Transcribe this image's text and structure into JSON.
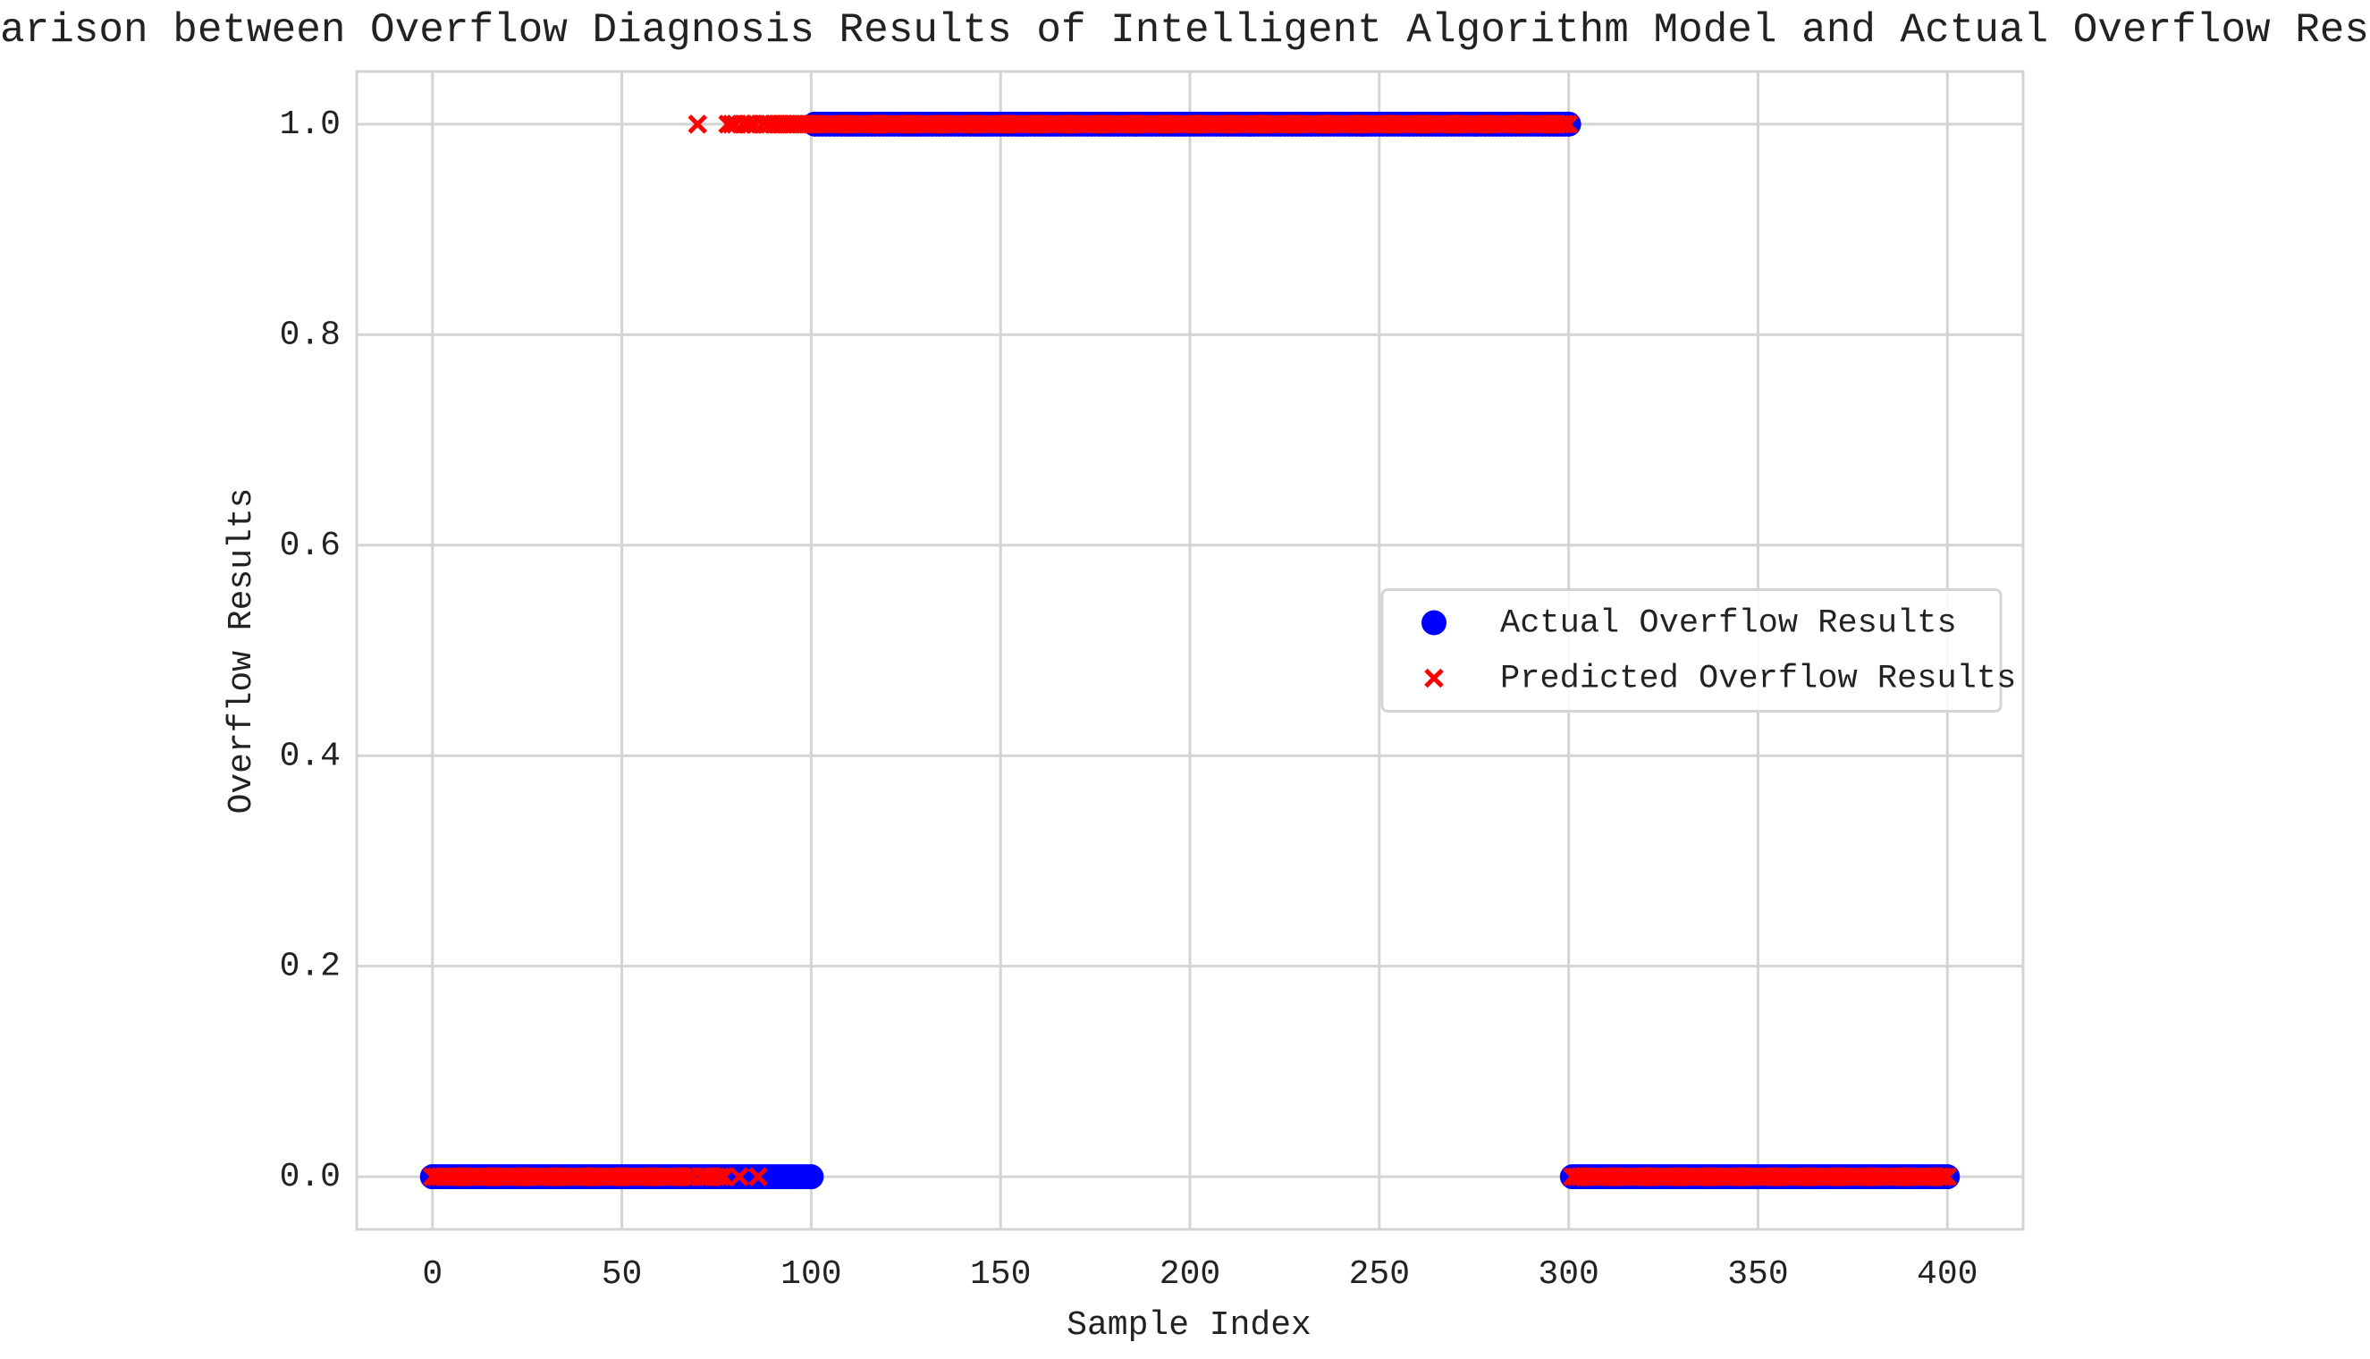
{
  "chart_data": {
    "type": "scatter",
    "title": "Comparison between Overflow Diagnosis Results of Intelligent Algorithm Model and Actual Overflow Results",
    "x_label": "Sample Index",
    "y_label": "Overflow Results",
    "xlim": [
      -20,
      420
    ],
    "ylim": [
      -0.05,
      1.05
    ],
    "xticks": [
      0,
      50,
      100,
      150,
      200,
      250,
      300,
      350,
      400
    ],
    "yticks": [
      {
        "value": 0,
        "label": "0.0"
      },
      0.2,
      0.4,
      0.6,
      0.8,
      {
        "value": 1,
        "label": "1.0"
      }
    ],
    "grid": true,
    "legend": "center right",
    "x": [
      0,
      1,
      2,
      3,
      4,
      5,
      6,
      7,
      8,
      9,
      10,
      11,
      12,
      13,
      14,
      15,
      16,
      17,
      18,
      19,
      20,
      21,
      22,
      23,
      24,
      25,
      26,
      27,
      28,
      29,
      30,
      31,
      32,
      33,
      34,
      35,
      36,
      37,
      38,
      39,
      40,
      41,
      42,
      43,
      44,
      45,
      46,
      47,
      48,
      49,
      50,
      51,
      52,
      53,
      54,
      55,
      56,
      57,
      58,
      59,
      60,
      61,
      62,
      63,
      64,
      65,
      66,
      67,
      68,
      69,
      70,
      71,
      72,
      73,
      74,
      75,
      76,
      77,
      78,
      79,
      80,
      81,
      82,
      83,
      84,
      85,
      86,
      87,
      88,
      89,
      90,
      91,
      92,
      93,
      94,
      95,
      96,
      97,
      98,
      99,
      100,
      101,
      102,
      103,
      104,
      105,
      106,
      107,
      108,
      109,
      110,
      111,
      112,
      113,
      114,
      115,
      116,
      117,
      118,
      119,
      120,
      121,
      122,
      123,
      124,
      125,
      126,
      127,
      128,
      129,
      130,
      131,
      132,
      133,
      134,
      135,
      136,
      137,
      138,
      139,
      140,
      141,
      142,
      143,
      144,
      145,
      146,
      147,
      148,
      149,
      150,
      151,
      152,
      153,
      154,
      155,
      156,
      157,
      158,
      159,
      160,
      161,
      162,
      163,
      164,
      165,
      166,
      167,
      168,
      169,
      170,
      171,
      172,
      173,
      174,
      175,
      176,
      177,
      178,
      179,
      180,
      181,
      182,
      183,
      184,
      185,
      186,
      187,
      188,
      189,
      190,
      191,
      192,
      193,
      194,
      195,
      196,
      197,
      198,
      199,
      200,
      201,
      202,
      203,
      204,
      205,
      206,
      207,
      208,
      209,
      210,
      211,
      212,
      213,
      214,
      215,
      216,
      217,
      218,
      219,
      220,
      221,
      222,
      223,
      224,
      225,
      226,
      227,
      228,
      229,
      230,
      231,
      232,
      233,
      234,
      235,
      236,
      237,
      238,
      239,
      240,
      241,
      242,
      243,
      244,
      245,
      246,
      247,
      248,
      249,
      250,
      251,
      252,
      253,
      254,
      255,
      256,
      257,
      258,
      259,
      260,
      261,
      262,
      263,
      264,
      265,
      266,
      267,
      268,
      269,
      270,
      271,
      272,
      273,
      274,
      275,
      276,
      277,
      278,
      279,
      280,
      281,
      282,
      283,
      284,
      285,
      286,
      287,
      288,
      289,
      290,
      291,
      292,
      293,
      294,
      295,
      296,
      297,
      298,
      299,
      300,
      301,
      302,
      303,
      304,
      305,
      306,
      307,
      308,
      309,
      310,
      311,
      312,
      313,
      314,
      315,
      316,
      317,
      318,
      319,
      320,
      321,
      322,
      323,
      324,
      325,
      326,
      327,
      328,
      329,
      330,
      331,
      332,
      333,
      334,
      335,
      336,
      337,
      338,
      339,
      340,
      341,
      342,
      343,
      344,
      345,
      346,
      347,
      348,
      349,
      350,
      351,
      352,
      353,
      354,
      355,
      356,
      357,
      358,
      359,
      360,
      361,
      362,
      363,
      364,
      365,
      366,
      367,
      368,
      369,
      370,
      371,
      372,
      373,
      374,
      375,
      376,
      377,
      378,
      379,
      380,
      381,
      382,
      383,
      384,
      385,
      386,
      387,
      388,
      389,
      390,
      391,
      392,
      393,
      394,
      395,
      396,
      397,
      398,
      399,
      400
    ],
    "series": [
      {
        "name": "Actual Overflow Results",
        "color": "#0000ff",
        "marker": "o",
        "values": [
          0,
          0,
          0,
          0,
          0,
          0,
          0,
          0,
          0,
          0,
          0,
          0,
          0,
          0,
          0,
          0,
          0,
          0,
          0,
          0,
          0,
          0,
          0,
          0,
          0,
          0,
          0,
          0,
          0,
          0,
          0,
          0,
          0,
          0,
          0,
          0,
          0,
          0,
          0,
          0,
          0,
          0,
          0,
          0,
          0,
          0,
          0,
          0,
          0,
          0,
          0,
          0,
          0,
          0,
          0,
          0,
          0,
          0,
          0,
          0,
          0,
          0,
          0,
          0,
          0,
          0,
          0,
          0,
          0,
          0,
          0,
          0,
          0,
          0,
          0,
          0,
          0,
          0,
          0,
          0,
          0,
          0,
          0,
          0,
          0,
          0,
          0,
          0,
          0,
          0,
          0,
          0,
          0,
          0,
          0,
          0,
          0,
          0,
          0,
          0,
          0,
          1,
          1,
          1,
          1,
          1,
          1,
          1,
          1,
          1,
          1,
          1,
          1,
          1,
          1,
          1,
          1,
          1,
          1,
          1,
          1,
          1,
          1,
          1,
          1,
          1,
          1,
          1,
          1,
          1,
          1,
          1,
          1,
          1,
          1,
          1,
          1,
          1,
          1,
          1,
          1,
          1,
          1,
          1,
          1,
          1,
          1,
          1,
          1,
          1,
          1,
          1,
          1,
          1,
          1,
          1,
          1,
          1,
          1,
          1,
          1,
          1,
          1,
          1,
          1,
          1,
          1,
          1,
          1,
          1,
          1,
          1,
          1,
          1,
          1,
          1,
          1,
          1,
          1,
          1,
          1,
          1,
          1,
          1,
          1,
          1,
          1,
          1,
          1,
          1,
          1,
          1,
          1,
          1,
          1,
          1,
          1,
          1,
          1,
          1,
          1,
          1,
          1,
          1,
          1,
          1,
          1,
          1,
          1,
          1,
          1,
          1,
          1,
          1,
          1,
          1,
          1,
          1,
          1,
          1,
          1,
          1,
          1,
          1,
          1,
          1,
          1,
          1,
          1,
          1,
          1,
          1,
          1,
          1,
          1,
          1,
          1,
          1,
          1,
          1,
          1,
          1,
          1,
          1,
          1,
          1,
          1,
          1,
          1,
          1,
          1,
          1,
          1,
          1,
          1,
          1,
          1,
          1,
          1,
          1,
          1,
          1,
          1,
          1,
          1,
          1,
          1,
          1,
          1,
          1,
          1,
          1,
          1,
          1,
          1,
          1,
          1,
          1,
          1,
          1,
          1,
          1,
          1,
          1,
          1,
          1,
          1,
          1,
          1,
          1,
          1,
          1,
          1,
          1,
          1,
          1,
          1,
          1,
          1,
          1,
          1,
          0,
          0,
          0,
          0,
          0,
          0,
          0,
          0,
          0,
          0,
          0,
          0,
          0,
          0,
          0,
          0,
          0,
          0,
          0,
          0,
          0,
          0,
          0,
          0,
          0,
          0,
          0,
          0,
          0,
          0,
          0,
          0,
          0,
          0,
          0,
          0,
          0,
          0,
          0,
          0,
          0,
          0,
          0,
          0,
          0,
          0,
          0,
          0,
          0,
          0,
          0,
          0,
          0,
          0,
          0,
          0,
          0,
          0,
          0,
          0,
          0,
          0,
          0,
          0,
          0,
          0,
          0,
          0,
          0,
          0,
          0,
          0,
          0,
          0,
          0,
          0,
          0,
          0,
          0,
          0,
          0,
          0,
          0,
          0,
          0,
          0,
          0,
          0,
          0,
          0,
          0,
          0,
          0,
          0,
          0,
          0,
          0,
          0,
          0,
          0
        ]
      },
      {
        "name": "Predicted Overflow Results",
        "color": "#ff0000",
        "marker": "x",
        "values": [
          0,
          0,
          0,
          0,
          0,
          0,
          0,
          0,
          0,
          0,
          0,
          0,
          0,
          0,
          0,
          0,
          0,
          0,
          0,
          0,
          0,
          0,
          0,
          0,
          0,
          0,
          0,
          0,
          0,
          0,
          0,
          0,
          0,
          0,
          0,
          0,
          0,
          0,
          0,
          0,
          0,
          0,
          0,
          0,
          0,
          0,
          0,
          0,
          0,
          0,
          0,
          0,
          0,
          0,
          0,
          0,
          0,
          0,
          0,
          0,
          0,
          0,
          0,
          0,
          0,
          0,
          0,
          0,
          0,
          0,
          1,
          0,
          0,
          0,
          0,
          0,
          0,
          0,
          1,
          1,
          1,
          0,
          1,
          1,
          1,
          1,
          0,
          1,
          1,
          1,
          1,
          1,
          1,
          1,
          1,
          1,
          1,
          1,
          1,
          1,
          1,
          1,
          1,
          1,
          1,
          1,
          1,
          1,
          1,
          1,
          1,
          1,
          1,
          1,
          1,
          1,
          1,
          1,
          1,
          1,
          1,
          1,
          1,
          1,
          1,
          1,
          1,
          1,
          1,
          1,
          1,
          1,
          1,
          1,
          1,
          1,
          1,
          1,
          1,
          1,
          1,
          1,
          1,
          1,
          1,
          1,
          1,
          1,
          1,
          1,
          1,
          1,
          1,
          1,
          1,
          1,
          1,
          1,
          1,
          1,
          1,
          1,
          1,
          1,
          1,
          1,
          1,
          1,
          1,
          1,
          1,
          1,
          1,
          1,
          1,
          1,
          1,
          1,
          1,
          1,
          1,
          1,
          1,
          1,
          1,
          1,
          1,
          1,
          1,
          1,
          1,
          1,
          1,
          1,
          1,
          1,
          1,
          1,
          1,
          1,
          1,
          1,
          1,
          1,
          1,
          1,
          1,
          1,
          1,
          1,
          1,
          1,
          1,
          1,
          1,
          1,
          1,
          1,
          1,
          1,
          1,
          1,
          1,
          1,
          1,
          1,
          1,
          1,
          1,
          1,
          1,
          1,
          1,
          1,
          1,
          1,
          1,
          1,
          1,
          1,
          1,
          1,
          1,
          1,
          1,
          1,
          1,
          1,
          1,
          1,
          1,
          1,
          1,
          1,
          1,
          1,
          1,
          1,
          1,
          1,
          1,
          1,
          1,
          1,
          1,
          1,
          1,
          1,
          1,
          1,
          1,
          1,
          1,
          1,
          1,
          1,
          1,
          1,
          1,
          1,
          1,
          1,
          1,
          1,
          1,
          1,
          1,
          1,
          1,
          1,
          1,
          1,
          1,
          1,
          1,
          1,
          1,
          1,
          1,
          1,
          1,
          0,
          0,
          0,
          0,
          0,
          0,
          0,
          0,
          0,
          0,
          0,
          0,
          0,
          0,
          0,
          0,
          0,
          0,
          0,
          0,
          0,
          0,
          0,
          0,
          0,
          0,
          0,
          0,
          0,
          0,
          0,
          0,
          0,
          0,
          0,
          0,
          0,
          0,
          0,
          0,
          0,
          0,
          0,
          0,
          0,
          0,
          0,
          0,
          0,
          0,
          0,
          0,
          0,
          0,
          0,
          0,
          0,
          0,
          0,
          0,
          0,
          0,
          0,
          0,
          0,
          0,
          0,
          0,
          0,
          0,
          0,
          0,
          0,
          0,
          0,
          0,
          0,
          0,
          0,
          0,
          0,
          0,
          0,
          0,
          0,
          0,
          0,
          0,
          0,
          0,
          0,
          0,
          0,
          0,
          0,
          0,
          0,
          0,
          0,
          0
        ]
      }
    ]
  }
}
